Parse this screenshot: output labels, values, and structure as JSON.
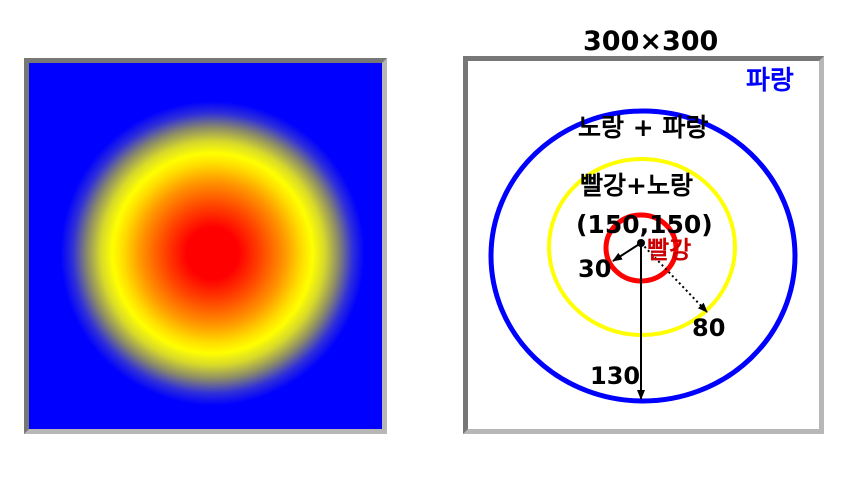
{
  "size_label": "300×300",
  "labels": {
    "blue": "파랑",
    "yellow_blue": "노랑 + 파랑",
    "red_yellow": "빨강+노랑",
    "center": "(150,150)",
    "red": "빨강",
    "r_inner": "30",
    "r_middle": "80",
    "r_outer": "130"
  },
  "colors": {
    "red": "#ff0000",
    "yellow": "#ffff00",
    "blue": "#0000ff",
    "red_text": "#cc0000",
    "blue_text": "#0000ff"
  }
}
